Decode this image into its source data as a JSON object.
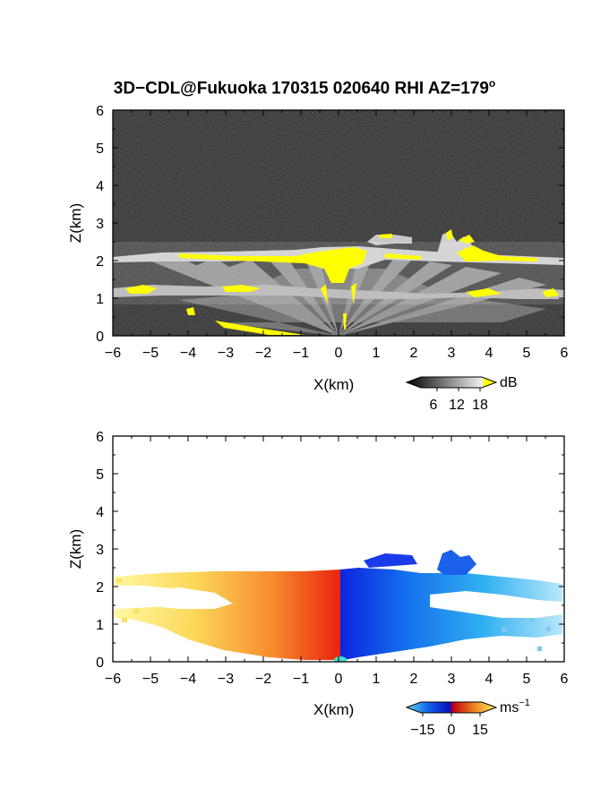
{
  "title": "3D−CDL@Fukuoka 170315 020640 RHI AZ=179",
  "title_superscript": "o",
  "chart_data": [
    {
      "type": "heatmap",
      "panel": "reflectivity",
      "xlabel": "X(km)",
      "ylabel": "Z(km)",
      "xlim": [
        -6,
        6
      ],
      "ylim": [
        0,
        6
      ],
      "xticks": [
        "−6",
        "−5",
        "−4",
        "−3",
        "−2",
        "−1",
        "0",
        "1",
        "2",
        "3",
        "4",
        "5",
        "6"
      ],
      "yticks": [
        "0",
        "1",
        "2",
        "3",
        "4",
        "5",
        "6"
      ],
      "colorbar": {
        "unit": "dB",
        "ticks": [
          "6",
          "12",
          "18"
        ],
        "range": [
          0,
          20
        ]
      },
      "colors": {
        "background": "#2a2a2a",
        "saturated": "#ffff00"
      },
      "layers": [
        {
          "name": "upper layer",
          "x": [
            -6,
            6
          ],
          "z": [
            1.9,
            2.3
          ]
        },
        {
          "name": "lower layer",
          "x": [
            -6,
            6
          ],
          "z": [
            1.0,
            1.3
          ]
        },
        {
          "name": "plume",
          "x": [
            2.8,
            3.8
          ],
          "z": [
            2.0,
            2.8
          ]
        }
      ]
    },
    {
      "type": "heatmap",
      "panel": "doppler velocity",
      "xlabel": "X(km)",
      "ylabel": "Z(km)",
      "xlim": [
        -6,
        6
      ],
      "ylim": [
        0,
        6
      ],
      "xticks": [
        "−6",
        "−5",
        "−4",
        "−3",
        "−2",
        "−1",
        "0",
        "1",
        "2",
        "3",
        "4",
        "5",
        "6"
      ],
      "yticks": [
        "0",
        "1",
        "2",
        "3",
        "4",
        "5",
        "6"
      ],
      "colorbar": {
        "unit": "ms",
        "unit_exponent": "−1",
        "ticks": [
          "−15",
          "0",
          "15"
        ],
        "range": [
          -20,
          20
        ]
      },
      "colors": {
        "negative_far": "#2aa8e8",
        "negative_near": "#1030e0",
        "positive_near": "#e82010",
        "positive_far": "#f8f040",
        "background": "#ffffff"
      }
    }
  ]
}
